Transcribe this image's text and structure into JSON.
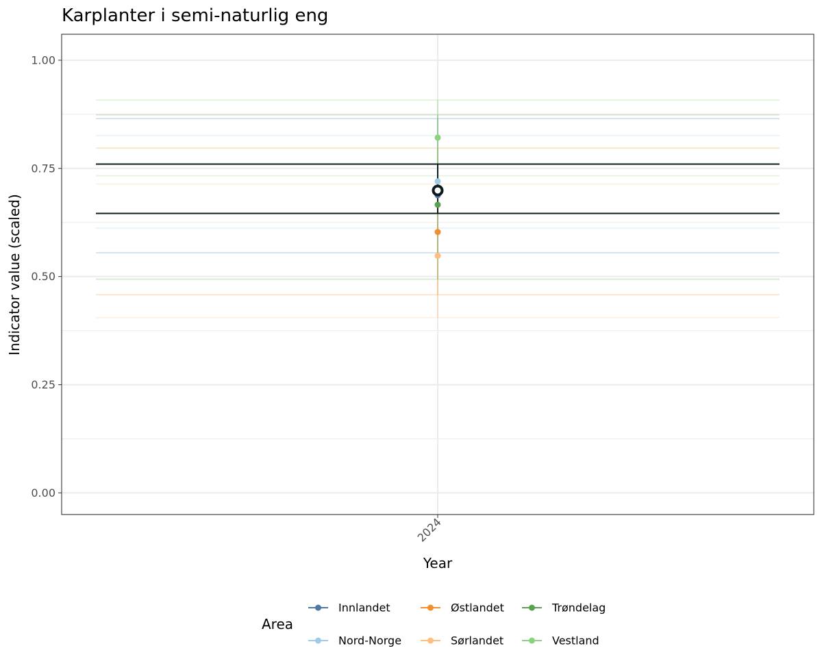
{
  "chart_data": {
    "type": "line",
    "title": "Karplanter i semi-naturlig eng",
    "xlabel": "Year",
    "ylabel": "Indicator value (scaled)",
    "x_categories": [
      "2024"
    ],
    "ylim": [
      -0.05,
      1.06
    ],
    "yticks": [
      0.0,
      0.25,
      0.5,
      0.75,
      1.0
    ],
    "ytick_labels": [
      "0.00",
      "0.25",
      "0.50",
      "0.75",
      "1.00"
    ],
    "grid": true,
    "legend": {
      "title": "Area",
      "placement": "bottom"
    },
    "series": [
      {
        "name": "Innlandet",
        "color": "#4e79a7",
        "value": 0.688,
        "lower": 0.555,
        "upper": 0.865
      },
      {
        "name": "Nord-Norge",
        "color": "#a0cbe8",
        "value": 0.72,
        "lower": 0.612,
        "upper": 0.826
      },
      {
        "name": "Østlandet",
        "color": "#f28e2b",
        "value": 0.603,
        "lower": 0.458,
        "upper": 0.797
      },
      {
        "name": "Sørlandet",
        "color": "#ffbe7d",
        "value": 0.548,
        "lower": 0.405,
        "upper": 0.714
      },
      {
        "name": "Trøndelag",
        "color": "#59a14f",
        "value": 0.666,
        "lower": 0.494,
        "upper": 0.874
      },
      {
        "name": "Vestland",
        "color": "#8cd17d",
        "value": 0.821,
        "lower": 0.733,
        "upper": 0.908
      }
    ],
    "overall": {
      "color": "#0d1b1e",
      "value": 0.699,
      "lower": 0.646,
      "upper": 0.76
    }
  }
}
